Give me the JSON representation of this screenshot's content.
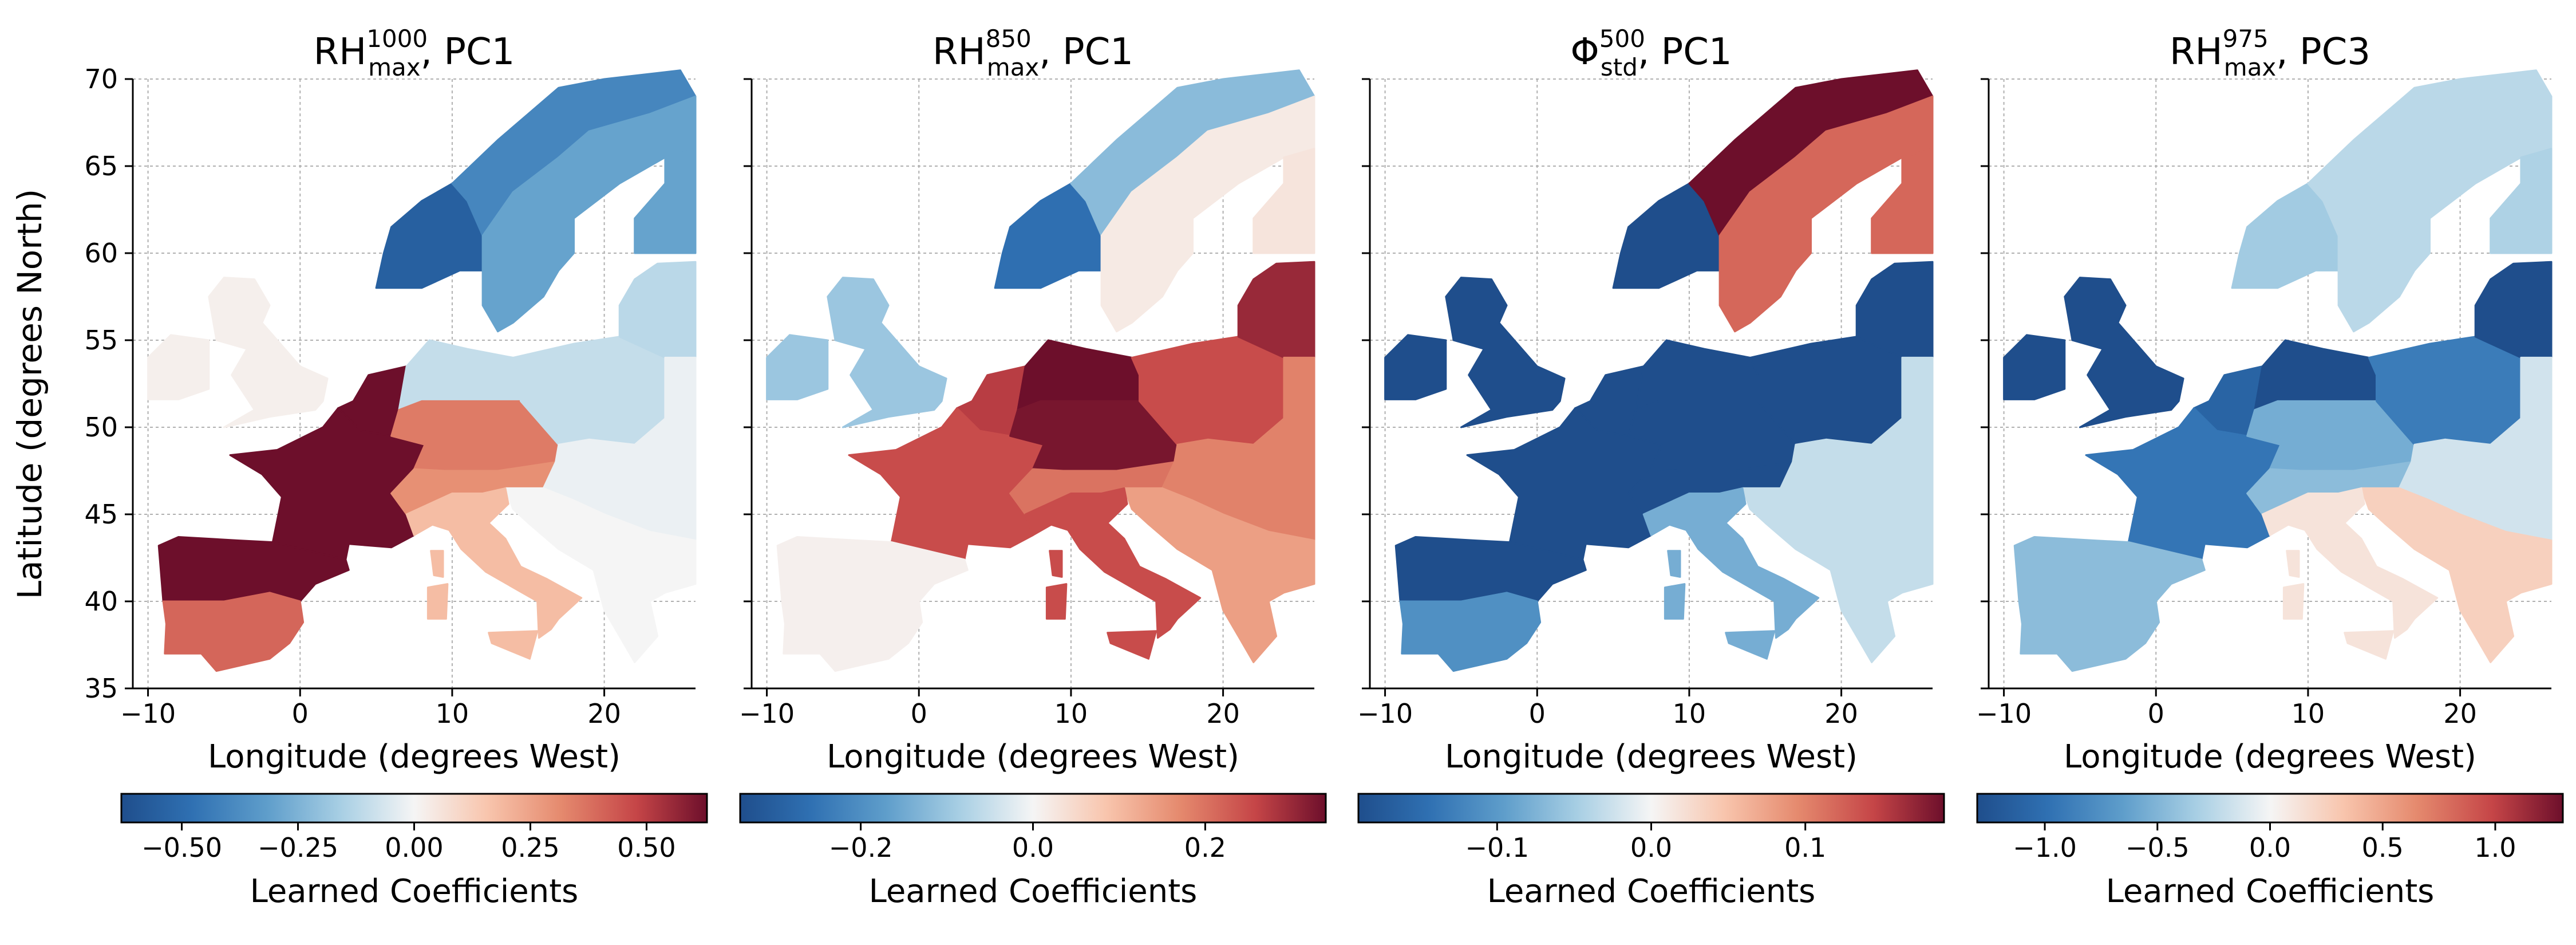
{
  "figure": {
    "ylabel": "Latitude (degrees North)"
  },
  "chart_data": [
    {
      "type": "heatmap",
      "title": {
        "base": "RH",
        "sup": "1000",
        "sub": "max",
        "rest": ", PC1"
      },
      "xlabel": "Longitude (degrees West)",
      "xlim": [
        -11,
        26
      ],
      "ylim": [
        35,
        70
      ],
      "xticks": [
        -10,
        0,
        10,
        20
      ],
      "yticks": [
        35,
        40,
        45,
        50,
        55,
        60,
        65,
        70
      ],
      "grid": true,
      "colorbar": {
        "label": "Learned Coefficients",
        "range": [
          -0.63,
          0.63
        ],
        "ticks": [
          -0.5,
          -0.25,
          0.0,
          0.25,
          0.5
        ],
        "ticklabels": [
          "−0.50",
          "−0.25",
          "0.00",
          "0.25",
          "0.50"
        ]
      },
      "regions": {
        "scandinavia_west": -0.55,
        "scandinavia_north": -0.4,
        "scandinavia_east": -0.3,
        "finland": -0.3,
        "baltic": -0.12,
        "uk": 0.02,
        "ireland": 0.02,
        "benelux": 0.63,
        "france": 0.63,
        "germany_north": -0.1,
        "germany_south": 0.35,
        "alps": 0.3,
        "poland": -0.1,
        "eastern_europe": -0.02,
        "balkans": 0.0,
        "iberia_north": 0.63,
        "iberia_south": 0.4,
        "italy": 0.18
      }
    },
    {
      "type": "heatmap",
      "title": {
        "base": "RH",
        "sup": "850",
        "sub": "max",
        "rest": ", PC1"
      },
      "xlabel": "Longitude (degrees West)",
      "xlim": [
        -11,
        26
      ],
      "ylim": [
        35,
        70
      ],
      "xticks": [
        -10,
        0,
        10,
        20
      ],
      "yticks": [
        35,
        40,
        45,
        50,
        55,
        60,
        65,
        70
      ],
      "grid": true,
      "colorbar": {
        "label": "Learned Coefficients",
        "range": [
          -0.34,
          0.34
        ],
        "ticks": [
          -0.2,
          0.0,
          0.2
        ],
        "ticklabels": [
          "−0.2",
          "0.0",
          "0.2"
        ]
      },
      "regions": {
        "scandinavia_west": -0.26,
        "scandinavia_north": -0.12,
        "scandinavia_east": 0.02,
        "finland": 0.03,
        "baltic": 0.3,
        "uk": -0.1,
        "ireland": -0.1,
        "benelux": 0.27,
        "france": 0.25,
        "germany_north": 0.34,
        "germany_south": 0.33,
        "alps": 0.2,
        "poland": 0.25,
        "eastern_europe": 0.18,
        "balkans": 0.14,
        "iberia_north": 0.01,
        "iberia_south": 0.01,
        "italy": 0.25
      }
    },
    {
      "type": "heatmap",
      "title": {
        "base": "Φ",
        "sup": "500",
        "sub": "std",
        "rest": ", PC1"
      },
      "xlabel": "Longitude (degrees West)",
      "xlim": [
        -11,
        26
      ],
      "ylim": [
        35,
        70
      ],
      "xticks": [
        -10,
        0,
        10,
        20
      ],
      "yticks": [
        35,
        40,
        45,
        50,
        55,
        60,
        65,
        70
      ],
      "grid": true,
      "colorbar": {
        "label": "Learned Coefficients",
        "range": [
          -0.19,
          0.19
        ],
        "ticks": [
          -0.1,
          0.0,
          0.1
        ],
        "ticklabels": [
          "−0.1",
          "0.0",
          "0.1"
        ]
      },
      "regions": {
        "scandinavia_west": -0.19,
        "scandinavia_north": 0.19,
        "scandinavia_east": 0.12,
        "finland": 0.12,
        "baltic": -0.19,
        "uk": -0.19,
        "ireland": -0.19,
        "benelux": -0.19,
        "france": -0.19,
        "germany_north": -0.19,
        "germany_south": -0.19,
        "alps": -0.19,
        "poland": -0.19,
        "eastern_europe": -0.03,
        "balkans": -0.03,
        "iberia_north": -0.19,
        "iberia_south": -0.11,
        "italy": -0.08
      }
    },
    {
      "type": "heatmap",
      "title": {
        "base": "RH",
        "sup": "975",
        "sub": "max",
        "rest": ", PC3"
      },
      "xlabel": "Longitude (degrees West)",
      "xlim": [
        -11,
        26
      ],
      "ylim": [
        35,
        70
      ],
      "xticks": [
        -10,
        0,
        10,
        20
      ],
      "yticks": [
        35,
        40,
        45,
        50,
        55,
        60,
        65,
        70
      ],
      "grid": true,
      "colorbar": {
        "label": "Learned Coefficients",
        "range": [
          -1.3,
          1.3
        ],
        "ticks": [
          -1.0,
          -0.5,
          0.0,
          0.5,
          1.0
        ],
        "ticklabels": [
          "−1.0",
          "−0.5",
          "0.0",
          "0.5",
          "1.0"
        ]
      },
      "regions": {
        "scandinavia_west": -0.35,
        "scandinavia_north": -0.25,
        "scandinavia_east": -0.25,
        "finland": -0.3,
        "baltic": -1.3,
        "uk": -1.3,
        "ireland": -1.3,
        "benelux": -1.1,
        "france": -0.95,
        "germany_north": -1.3,
        "germany_south": -0.55,
        "alps": -0.45,
        "poland": -0.9,
        "eastern_europe": -0.15,
        "balkans": 0.25,
        "iberia_north": -0.45,
        "iberia_south": -0.45,
        "italy": 0.12
      }
    }
  ]
}
